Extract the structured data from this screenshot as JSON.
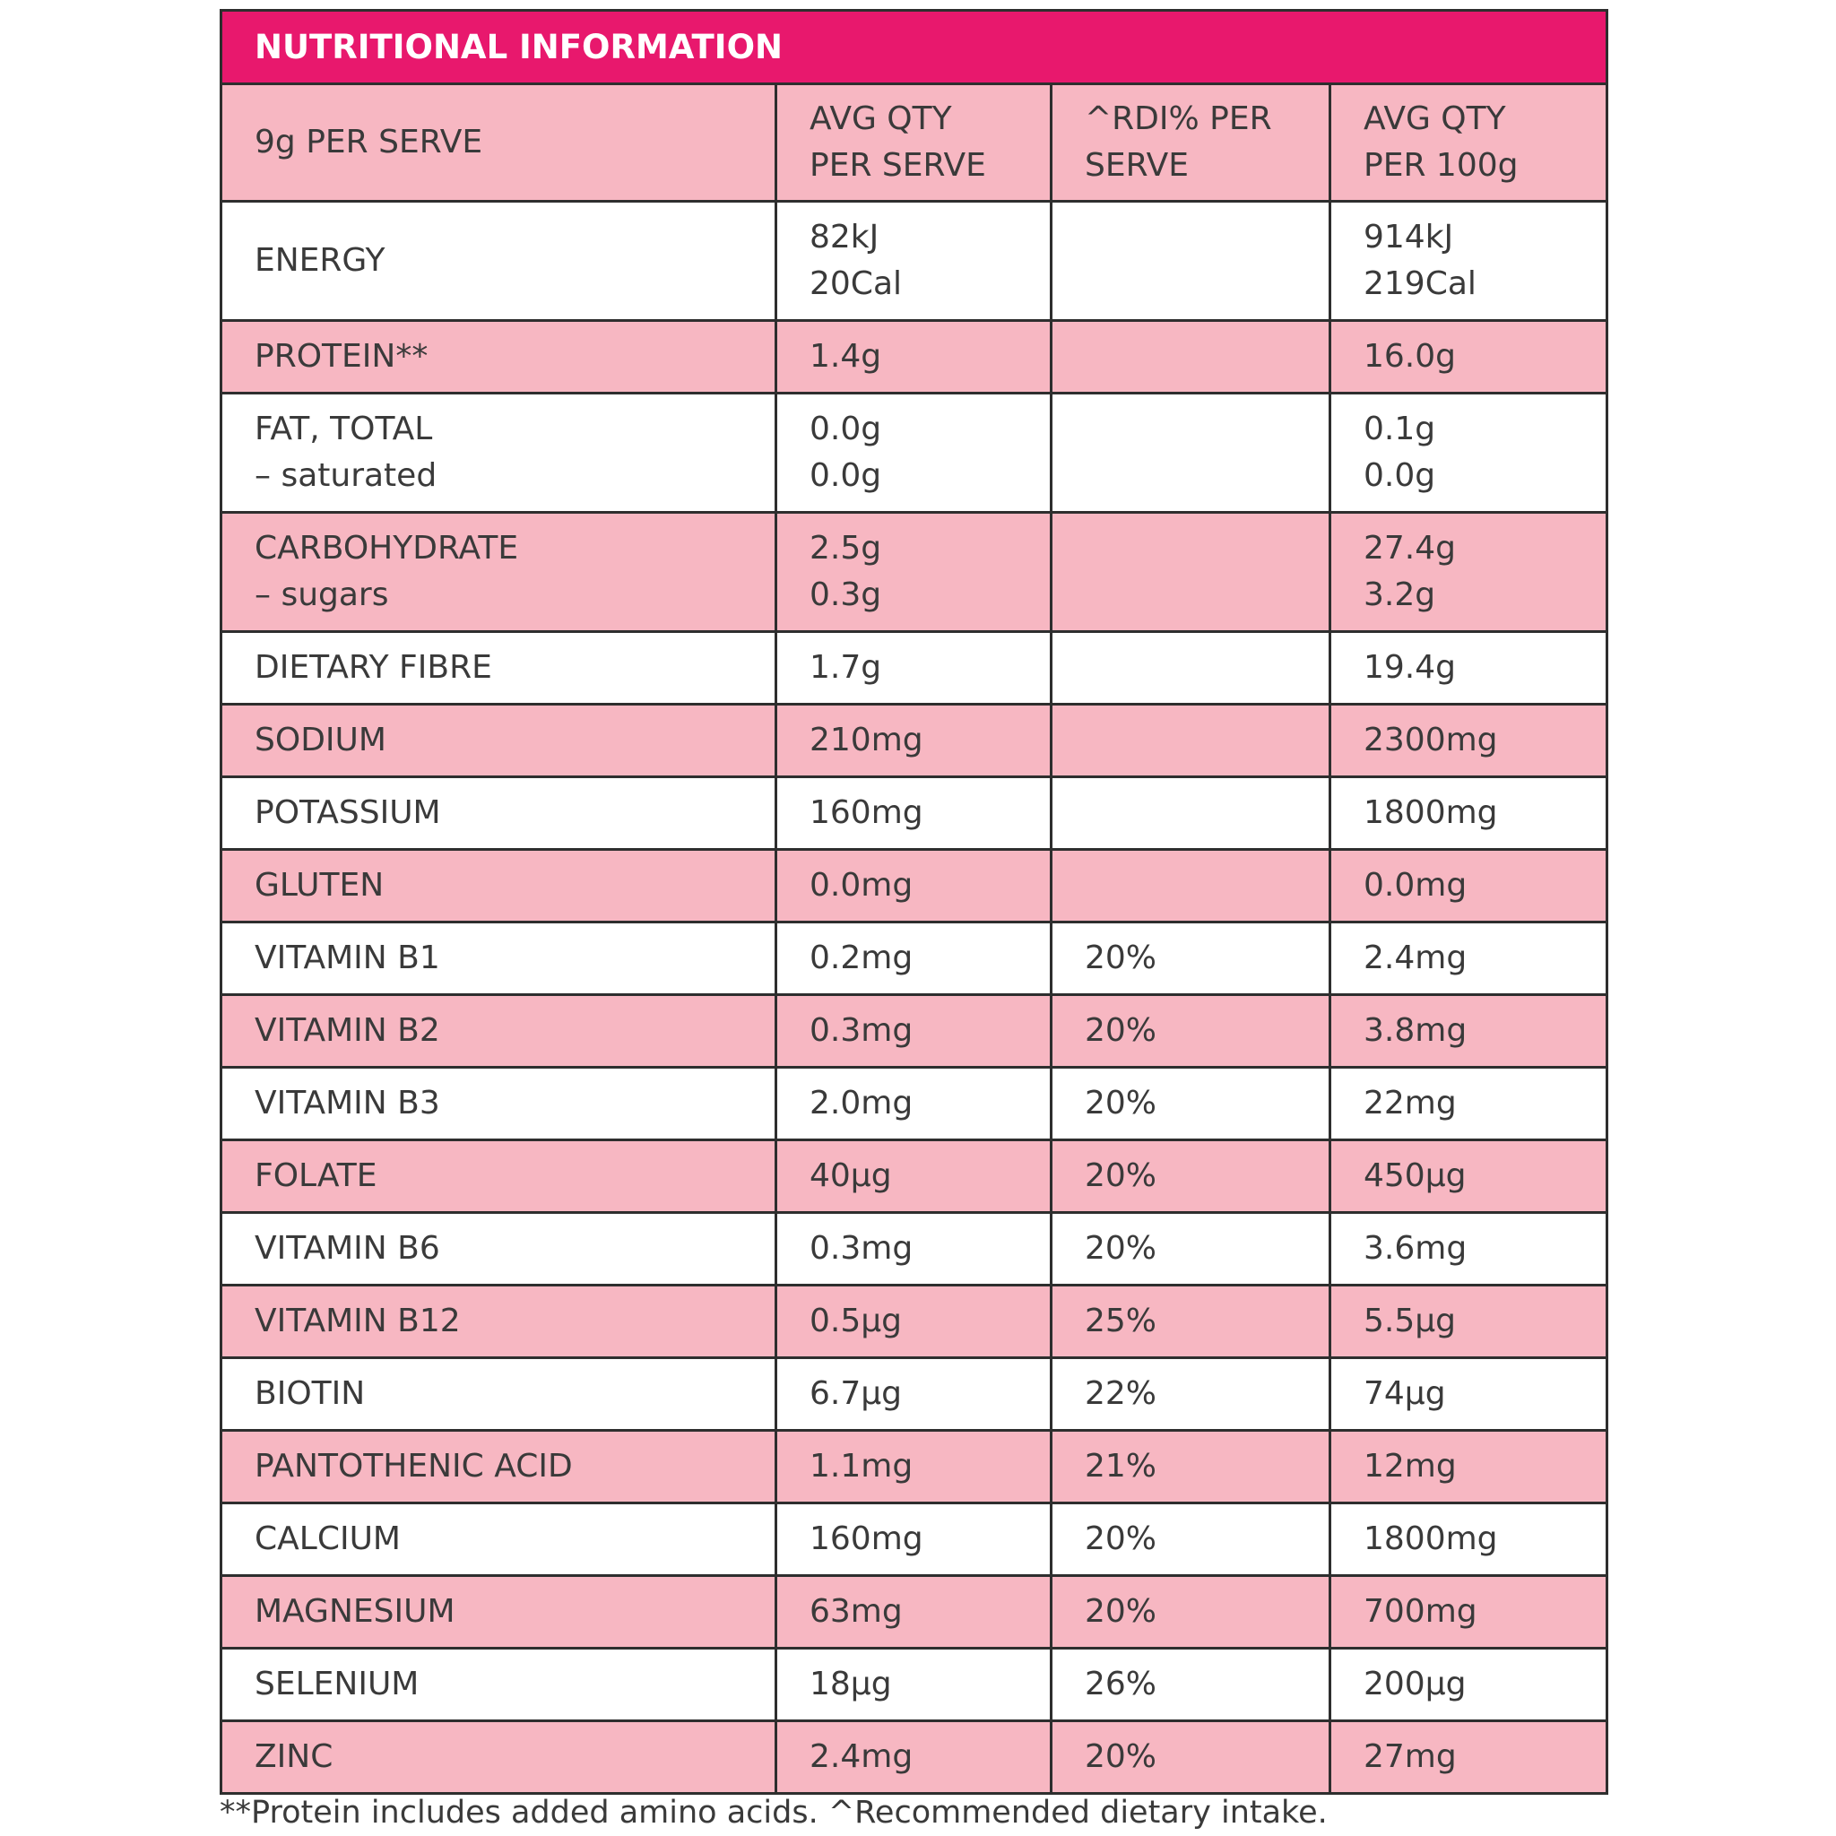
{
  "title": "NUTRITIONAL INFORMATION",
  "header": [
    "9g PER SERVE",
    [
      "AVG QTY",
      "PER SERVE"
    ],
    [
      "^RDI% PER",
      "SERVE"
    ],
    [
      "AVG QTY",
      "PER 100g"
    ]
  ],
  "rows": [
    [
      "ENERGY",
      [
        "82kJ",
        "20Cal"
      ],
      null,
      [
        "914kJ",
        "219Cal"
      ]
    ],
    [
      "PROTEIN**",
      "1.4g",
      null,
      "16.0g"
    ],
    [
      [
        "FAT, TOTAL",
        "– saturated"
      ],
      [
        "0.0g",
        "0.0g"
      ],
      null,
      [
        "0.1g",
        "0.0g"
      ]
    ],
    [
      [
        "CARBOHYDRATE",
        "– sugars"
      ],
      [
        "2.5g",
        "0.3g"
      ],
      null,
      [
        "27.4g",
        "3.2g"
      ]
    ],
    [
      "DIETARY FIBRE",
      "1.7g",
      null,
      "19.4g"
    ],
    [
      "SODIUM",
      "210mg",
      null,
      "2300mg"
    ],
    [
      "POTASSIUM",
      "160mg",
      null,
      "1800mg"
    ],
    [
      "GLUTEN",
      "0.0mg",
      null,
      "0.0mg"
    ],
    [
      "VITAMIN B1",
      "0.2mg",
      "20%",
      "2.4mg"
    ],
    [
      "VITAMIN B2",
      "0.3mg",
      "20%",
      "3.8mg"
    ],
    [
      "VITAMIN B3",
      "2.0mg",
      "20%",
      "22mg"
    ],
    [
      "FOLATE",
      "40µg",
      "20%",
      "450µg"
    ],
    [
      "VITAMIN B6",
      "0.3mg",
      "20%",
      "3.6mg"
    ],
    [
      "VITAMIN B12",
      "0.5µg",
      "25%",
      "5.5µg"
    ],
    [
      "BIOTIN",
      "6.7µg",
      "22%",
      "74µg"
    ],
    [
      "PANTOTHENIC ACID",
      "1.1mg",
      "21%",
      "12mg"
    ],
    [
      "CALCIUM",
      "160mg",
      "20%",
      "1800mg"
    ],
    [
      "MAGNESIUM",
      "63mg",
      "20%",
      "700mg"
    ],
    [
      "SELENIUM",
      "18µg",
      "26%",
      "200µg"
    ],
    [
      "ZINC",
      "2.4mg",
      "20%",
      "27mg"
    ]
  ],
  "footnote": "**Protein includes added amino acids. ^Recommended dietary intake."
}
